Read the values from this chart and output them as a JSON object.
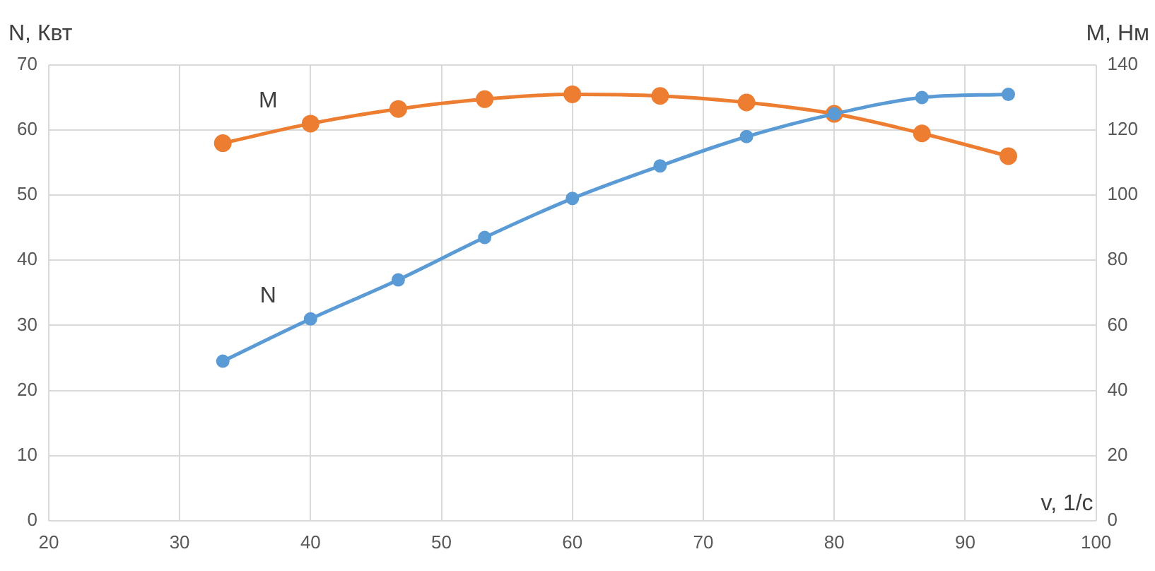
{
  "chart_data": {
    "type": "line",
    "xlabel": "v, 1/c",
    "ylabel": "N, Квт",
    "y2label": "M, Нм",
    "x": [
      33.3,
      40,
      46.7,
      53.3,
      60,
      66.7,
      73.3,
      80,
      86.7,
      93.3
    ],
    "series": [
      {
        "name": "N",
        "color": "#5b9bd5",
        "values": [
          24.5,
          31,
          37,
          43.5,
          49.5,
          54.5,
          59,
          62.5,
          65,
          65.5
        ]
      },
      {
        "name": "M",
        "color": "#ed7d31",
        "axis": "y2",
        "values": [
          116,
          122,
          126.5,
          129.5,
          131,
          130.5,
          128.5,
          125,
          119,
          112
        ]
      }
    ],
    "xlim": [
      20,
      100
    ],
    "xticks": [
      20,
      30,
      40,
      50,
      60,
      70,
      80,
      90,
      100
    ],
    "ylim": [
      0,
      70
    ],
    "yticks": [
      0,
      10,
      20,
      30,
      40,
      50,
      60,
      70
    ],
    "y2lim": [
      0,
      140
    ],
    "y2ticks": [
      0,
      20,
      40,
      60,
      80,
      100,
      120,
      140
    ],
    "grid": true,
    "legend": false,
    "marker": "circle",
    "line_style": "solid"
  }
}
